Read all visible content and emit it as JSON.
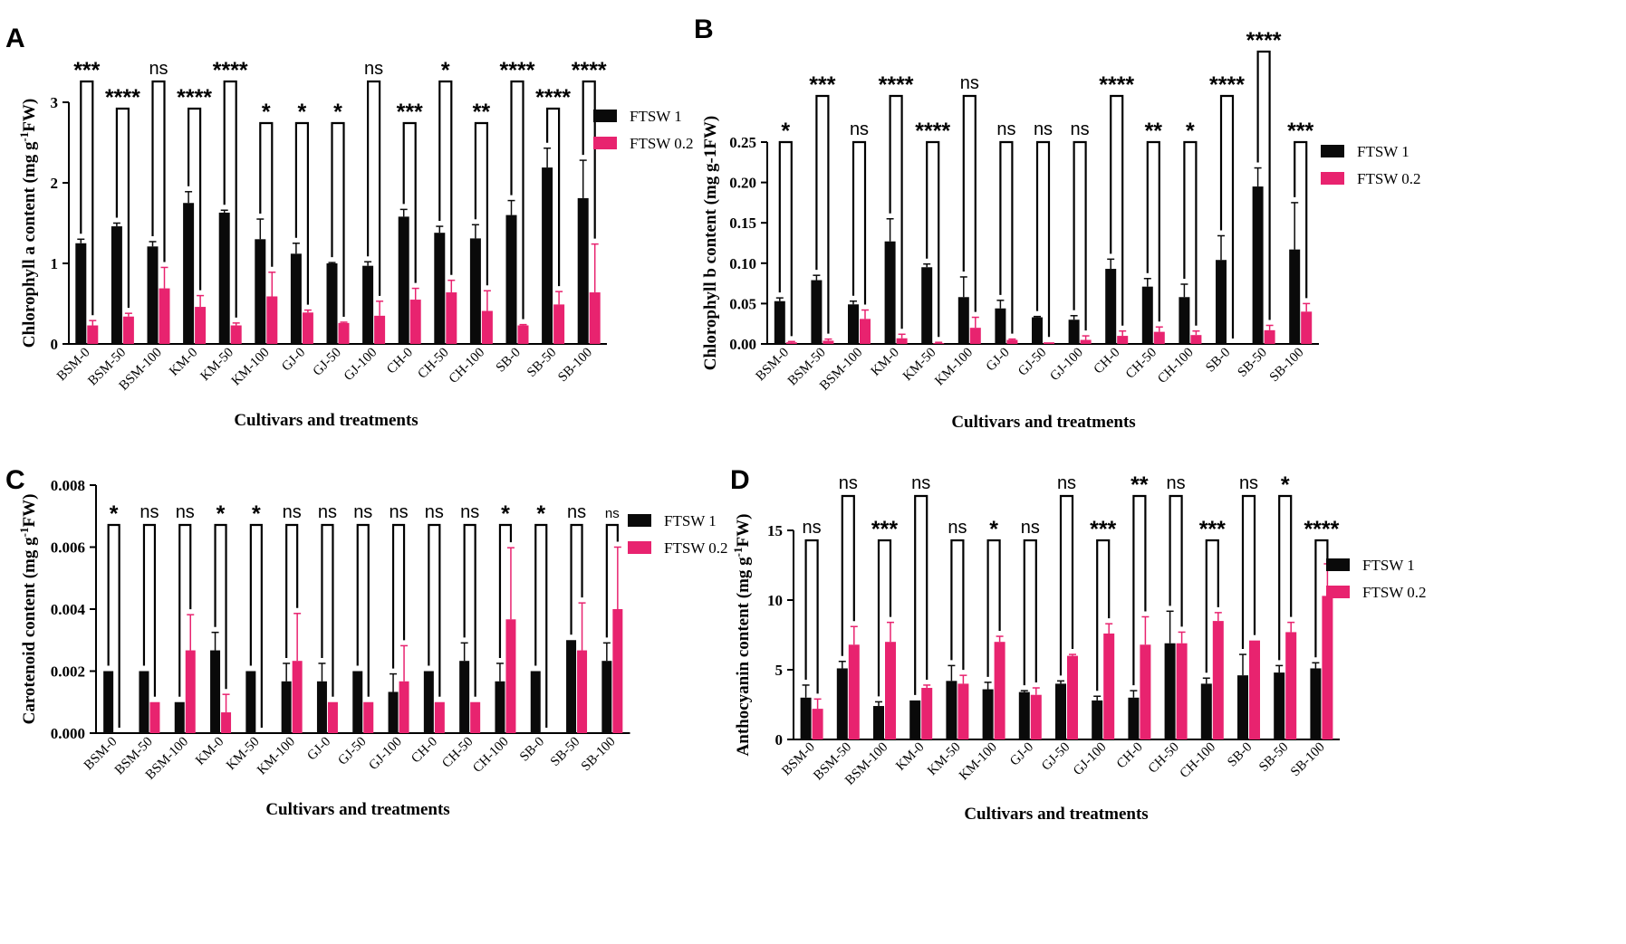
{
  "colors": {
    "ftsw1": "#0a0a0a",
    "ftsw02": "#e8236f",
    "axis": "#000000"
  },
  "chart_data": [
    {
      "panel": "A",
      "type": "bar",
      "ylabel_pre": "Chlorophyll a content (mg g",
      "ylabel_sup": "-1",
      "ylabel_post": "FW)",
      "xlabel": "Cultivars and treatments",
      "ylim": [
        0,
        3
      ],
      "yticks": [
        0,
        1,
        2,
        3
      ],
      "ytick_labels": [
        "0",
        "1",
        "2",
        "3"
      ],
      "categories": [
        "BSM-0",
        "BSM-50",
        "BSM-100",
        "KM-0",
        "KM-50",
        "KM-100",
        "GJ-0",
        "GJ-50",
        "GJ-100",
        "CH-0",
        "CH-50",
        "CH-100",
        "SB-0",
        "SB-50",
        "SB-100"
      ],
      "series": [
        {
          "name": "FTSW 1",
          "values": [
            1.25,
            1.46,
            1.21,
            1.75,
            1.63,
            1.3,
            1.12,
            1.0,
            0.97,
            1.58,
            1.38,
            1.31,
            1.6,
            2.19,
            1.81
          ],
          "errors": [
            0.05,
            0.04,
            0.06,
            0.14,
            0.03,
            0.25,
            0.13,
            0.01,
            0.05,
            0.09,
            0.08,
            0.17,
            0.18,
            0.24,
            0.47
          ]
        },
        {
          "name": "FTSW 0.2",
          "values": [
            0.23,
            0.34,
            0.69,
            0.46,
            0.23,
            0.59,
            0.39,
            0.26,
            0.35,
            0.55,
            0.64,
            0.41,
            0.23,
            0.49,
            0.64
          ],
          "errors": [
            0.06,
            0.04,
            0.26,
            0.14,
            0.03,
            0.3,
            0.03,
            0.01,
            0.18,
            0.14,
            0.15,
            0.25,
            0.01,
            0.16,
            0.6
          ]
        }
      ],
      "significance": [
        "***",
        "****",
        "ns",
        "****",
        "****",
        "*",
        "*",
        "*",
        "ns",
        "***",
        "*",
        "**",
        "****",
        "****",
        "****"
      ],
      "legend": [
        "FTSW 1",
        "FTSW 0.2"
      ]
    },
    {
      "panel": "B",
      "type": "bar",
      "ylabel_pre": "Chlorophyll b content (mg g-1FW)",
      "ylabel_sup": "",
      "ylabel_post": "",
      "xlabel": "Cultivars and treatments",
      "ylim": [
        0,
        0.25
      ],
      "yticks": [
        0,
        0.05,
        0.1,
        0.15,
        0.2,
        0.25
      ],
      "ytick_labels": [
        "0.00",
        "0.05",
        "0.10",
        "0.15",
        "0.20",
        "0.25"
      ],
      "categories": [
        "BSM-0",
        "BSM-50",
        "BSM-100",
        "KM-0",
        "KM-50",
        "KM-100",
        "GJ-0",
        "GJ-50",
        "GJ-100",
        "CH-0",
        "CH-50",
        "CH-100",
        "SB-0",
        "SB-50",
        "SB-100"
      ],
      "series": [
        {
          "name": "FTSW 1",
          "values": [
            0.053,
            0.079,
            0.049,
            0.127,
            0.095,
            0.058,
            0.044,
            0.033,
            0.03,
            0.093,
            0.071,
            0.058,
            0.104,
            0.195,
            0.117
          ],
          "errors": [
            0.004,
            0.006,
            0.004,
            0.028,
            0.004,
            0.025,
            0.01,
            0.001,
            0.005,
            0.012,
            0.01,
            0.016,
            0.03,
            0.023,
            0.058
          ]
        },
        {
          "name": "FTSW 0.2",
          "values": [
            0.002,
            0.004,
            0.031,
            0.007,
            0.001,
            0.02,
            0.005,
            0.002,
            0.005,
            0.01,
            0.015,
            0.011,
            0.0,
            0.017,
            0.04
          ],
          "errors": [
            0.001,
            0.002,
            0.011,
            0.005,
            0.001,
            0.013,
            0.001,
            0.0,
            0.005,
            0.006,
            0.006,
            0.005,
            0.0,
            0.006,
            0.01
          ]
        }
      ],
      "significance": [
        "*",
        "***",
        "ns",
        "****",
        "****",
        "ns",
        "ns",
        "ns",
        "ns",
        "****",
        "**",
        "*",
        "****",
        "****",
        "***"
      ],
      "legend": [
        "FTSW 1",
        "FTSW 0.2"
      ]
    },
    {
      "panel": "C",
      "type": "bar",
      "ylabel_pre": "Carotenoid content (mg g",
      "ylabel_sup": "-1",
      "ylabel_post": "FW)",
      "xlabel": "Cultivars and treatments",
      "ylim": [
        0,
        0.008
      ],
      "yticks": [
        0,
        0.002,
        0.004,
        0.006,
        0.008
      ],
      "ytick_labels": [
        "0.000",
        "0.002",
        "0.004",
        "0.006",
        "0.008"
      ],
      "categories": [
        "BSM-0",
        "BSM-50",
        "BSM-100",
        "KM-0",
        "KM-50",
        "KM-100",
        "GJ-0",
        "GJ-50",
        "GJ-100",
        "CH-0",
        "CH-50",
        "CH-100",
        "SB-0",
        "SB-50",
        "SB-100"
      ],
      "series": [
        {
          "name": "FTSW 1",
          "values": [
            0.002,
            0.002,
            0.001,
            0.00267,
            0.002,
            0.00167,
            0.00167,
            0.002,
            0.00133,
            0.002,
            0.00233,
            0.00167,
            0.002,
            0.003,
            0.00233
          ],
          "errors": [
            0,
            0,
            0,
            0.00058,
            0,
            0.00058,
            0.00058,
            0,
            0.00058,
            0,
            0.00058,
            0.00058,
            0,
            0,
            0.00058
          ]
        },
        {
          "name": "FTSW 0.2",
          "values": [
            0,
            0.001,
            0.00267,
            0.00067,
            0,
            0.00233,
            0.001,
            0.001,
            0.00167,
            0.001,
            0.001,
            0.00367,
            0,
            0.00267,
            0.004
          ],
          "errors": [
            0,
            0,
            0.00115,
            0.00058,
            0,
            0.00153,
            0,
            0,
            0.00115,
            0,
            0,
            0.00231,
            0,
            0.00153,
            0.002
          ]
        }
      ],
      "significance": [
        "*",
        "ns",
        "ns",
        "*",
        "*",
        "ns",
        "ns",
        "ns",
        "ns",
        "ns",
        "ns",
        "*",
        "*",
        "ns",
        "ns"
      ],
      "legend": [
        "FTSW 1",
        "FTSW 0.2"
      ]
    },
    {
      "panel": "D",
      "type": "bar",
      "ylabel_pre": "Anthocyanin content (mg g",
      "ylabel_sup": "-1",
      "ylabel_post": "FW)",
      "xlabel": "Cultivars and treatments",
      "ylim": [
        0,
        15
      ],
      "yticks": [
        0,
        5,
        10,
        15
      ],
      "ytick_labels": [
        "0",
        "5",
        "10",
        "15"
      ],
      "categories": [
        "BSM-0",
        "BSM-50",
        "BSM-100",
        "KM-0",
        "KM-50",
        "KM-100",
        "GJ-0",
        "GJ-50",
        "GJ-100",
        "CH-0",
        "CH-50",
        "CH-100",
        "SB-0",
        "SB-50",
        "SB-100"
      ],
      "series": [
        {
          "name": "FTSW 1",
          "values": [
            3.0,
            5.1,
            2.4,
            2.8,
            4.2,
            3.6,
            3.4,
            4.0,
            2.8,
            3.0,
            6.9,
            4.0,
            4.6,
            4.8,
            5.1
          ],
          "errors": [
            0.9,
            0.5,
            0.3,
            0.0,
            1.1,
            0.5,
            0.1,
            0.2,
            0.3,
            0.5,
            2.3,
            0.4,
            1.5,
            0.5,
            0.4
          ]
        },
        {
          "name": "FTSW 0.2",
          "values": [
            2.2,
            6.8,
            7.0,
            3.7,
            4.0,
            7.0,
            3.2,
            6.0,
            7.6,
            6.8,
            6.9,
            8.5,
            7.1,
            7.7,
            10.3
          ],
          "errors": [
            0.7,
            1.3,
            1.4,
            0.2,
            0.6,
            0.4,
            0.5,
            0.1,
            0.7,
            2.0,
            0.8,
            0.6,
            0.0,
            0.7,
            2.3
          ]
        }
      ],
      "significance": [
        "ns",
        "ns",
        "***",
        "ns",
        "ns",
        "*",
        "ns",
        "ns",
        "***",
        "**",
        "ns",
        "***",
        "ns",
        "*",
        "****"
      ],
      "legend": [
        "FTSW 1",
        "FTSW 0.2"
      ]
    }
  ]
}
